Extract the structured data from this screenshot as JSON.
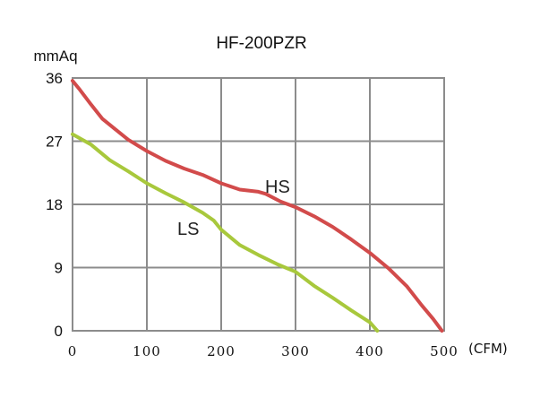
{
  "chart_data": {
    "type": "line",
    "title": "HF-200PZR",
    "ylabel": "mmAq",
    "xunit": "(CFM)",
    "xlim": [
      0,
      500
    ],
    "ylim": [
      0,
      36
    ],
    "xticks": [
      "0",
      "100",
      "200",
      "300",
      "400",
      "500"
    ],
    "yticks": [
      "36",
      "27",
      "18",
      "9",
      "0"
    ],
    "xtick_values": [
      0,
      100,
      200,
      300,
      400,
      500
    ],
    "ytick_values": [
      36,
      27,
      18,
      9,
      0
    ],
    "grid": true,
    "series": [
      {
        "name": "HS",
        "color": "#d24b4b",
        "x": [
          0,
          10,
          25,
          40,
          55,
          75,
          100,
          125,
          150,
          175,
          200,
          225,
          250,
          260,
          280,
          300,
          325,
          350,
          375,
          400,
          425,
          450,
          470,
          485,
          497
        ],
        "y": [
          35.6,
          34.3,
          32.2,
          30.2,
          28.9,
          27.2,
          25.6,
          24.2,
          23.1,
          22.2,
          21.0,
          20.1,
          19.8,
          19.5,
          18.4,
          17.6,
          16.3,
          14.8,
          13.0,
          11.1,
          8.9,
          6.3,
          3.6,
          1.7,
          0.0
        ]
      },
      {
        "name": "LS",
        "color": "#a8c83c",
        "x": [
          0,
          25,
          50,
          75,
          100,
          125,
          150,
          175,
          190,
          200,
          225,
          250,
          275,
          300,
          325,
          350,
          375,
          400,
          410
        ],
        "y": [
          28.0,
          26.5,
          24.3,
          22.7,
          21.0,
          19.6,
          18.3,
          16.8,
          15.7,
          14.4,
          12.2,
          10.8,
          9.5,
          8.4,
          6.4,
          4.7,
          2.9,
          1.2,
          0.0
        ]
      }
    ]
  }
}
